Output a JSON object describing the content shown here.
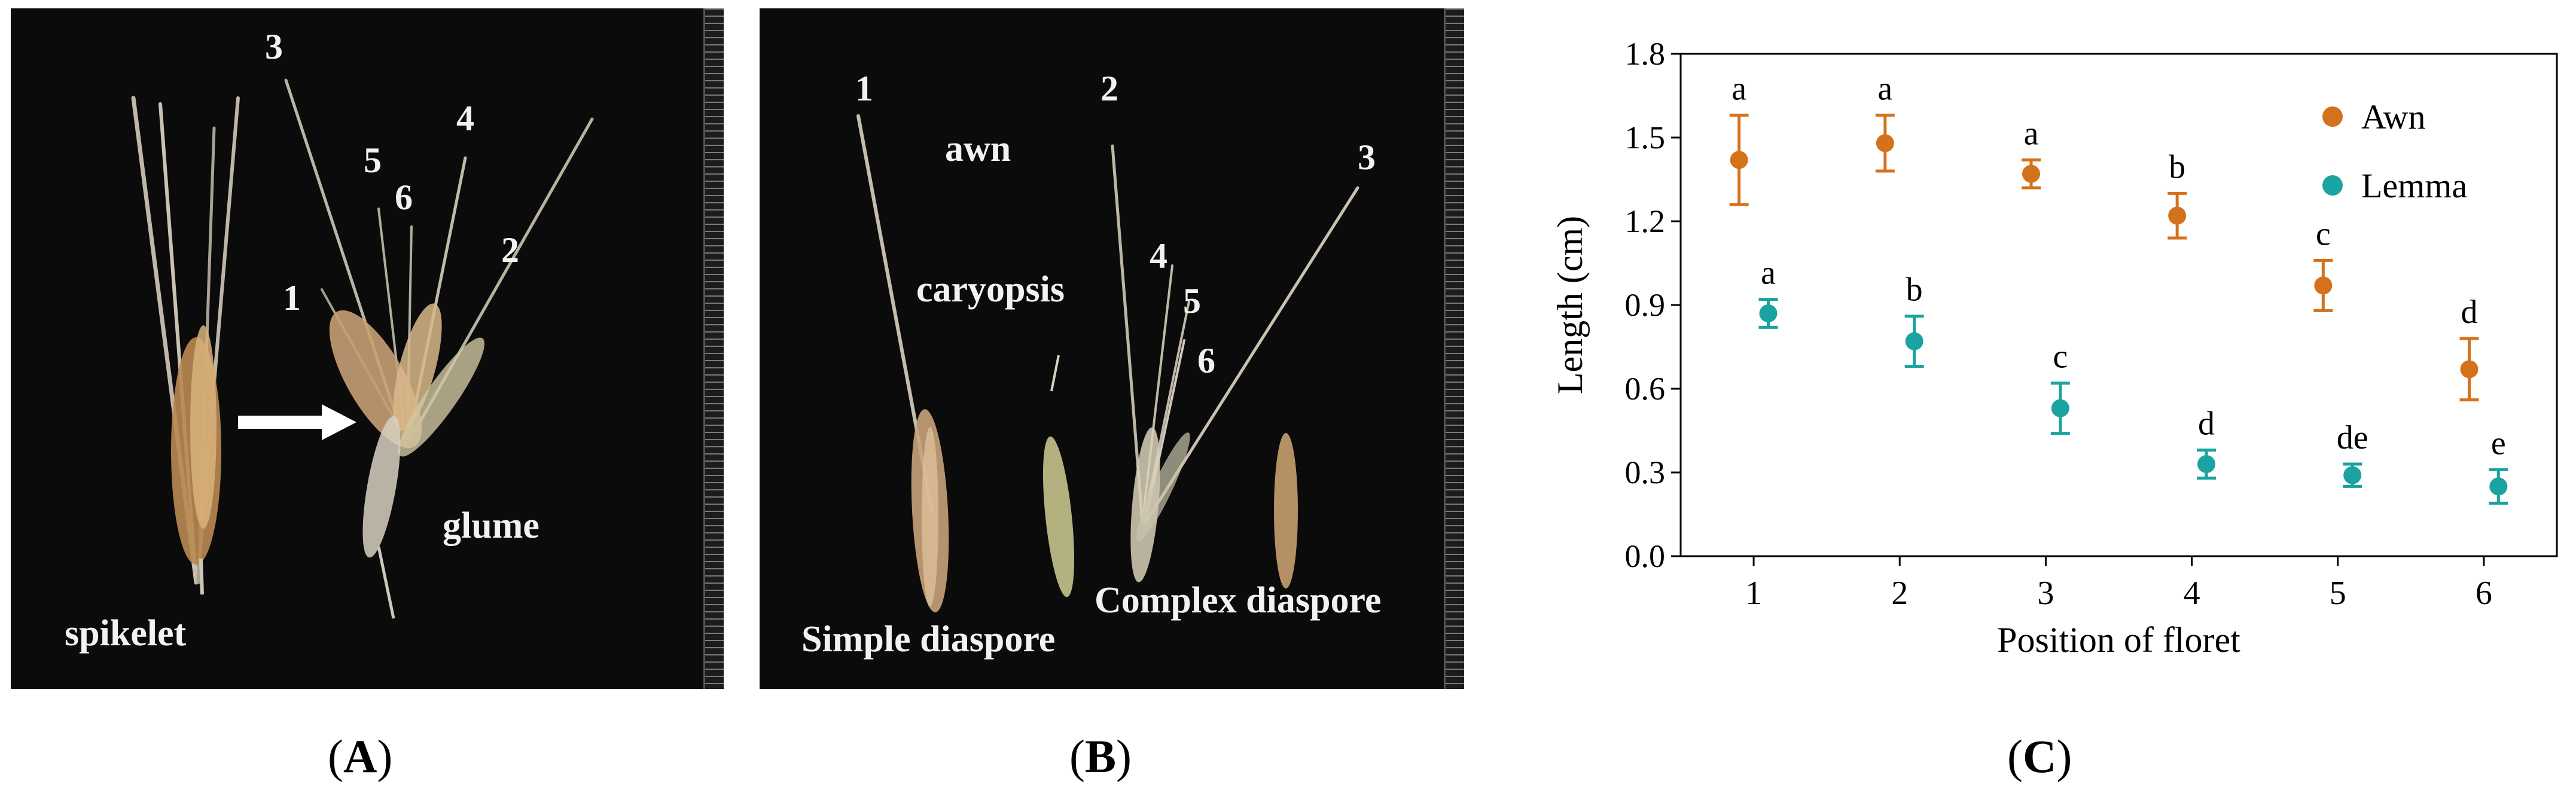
{
  "panel_a": {
    "labels": {
      "n1": "1",
      "n2": "2",
      "n3": "3",
      "n4": "4",
      "n5": "5",
      "n6": "6",
      "spikelet": "spikelet",
      "glume": "glume"
    }
  },
  "panel_b": {
    "labels": {
      "n1": "1",
      "n2": "2",
      "n3": "3",
      "n4": "4",
      "n5": "5",
      "n6": "6",
      "awn": "awn",
      "caryopsis": "caryopsis",
      "simple": "Simple diaspore",
      "complex": "Complex diaspore"
    }
  },
  "captions": {
    "a": "A",
    "b": "B",
    "c": "C"
  },
  "colors": {
    "awn": "#d4721c",
    "lemma": "#1aa3a0"
  },
  "chart_data": {
    "type": "scatter",
    "xlabel": "Position of floret",
    "ylabel": "Length (cm)",
    "x": [
      1,
      2,
      3,
      4,
      5,
      6
    ],
    "xlim": [
      0.5,
      6.5
    ],
    "ylim": [
      0,
      1.8
    ],
    "yticks": [
      "0.0",
      "0.3",
      "0.6",
      "0.9",
      "1.2",
      "1.5",
      "1.8"
    ],
    "xticks": [
      "1",
      "2",
      "3",
      "4",
      "5",
      "6"
    ],
    "legend_position": "top-right",
    "series": [
      {
        "name": "Awn",
        "values": [
          1.42,
          1.48,
          1.37,
          1.22,
          0.97,
          0.67
        ],
        "err": [
          0.16,
          0.1,
          0.05,
          0.08,
          0.09,
          0.11
        ],
        "letters": [
          "a",
          "a",
          "a",
          "b",
          "c",
          "d"
        ]
      },
      {
        "name": "Lemma",
        "values": [
          0.87,
          0.77,
          0.53,
          0.33,
          0.29,
          0.25
        ],
        "err": [
          0.05,
          0.09,
          0.09,
          0.05,
          0.04,
          0.06
        ],
        "letters": [
          "a",
          "b",
          "c",
          "d",
          "de",
          "e"
        ]
      }
    ]
  }
}
